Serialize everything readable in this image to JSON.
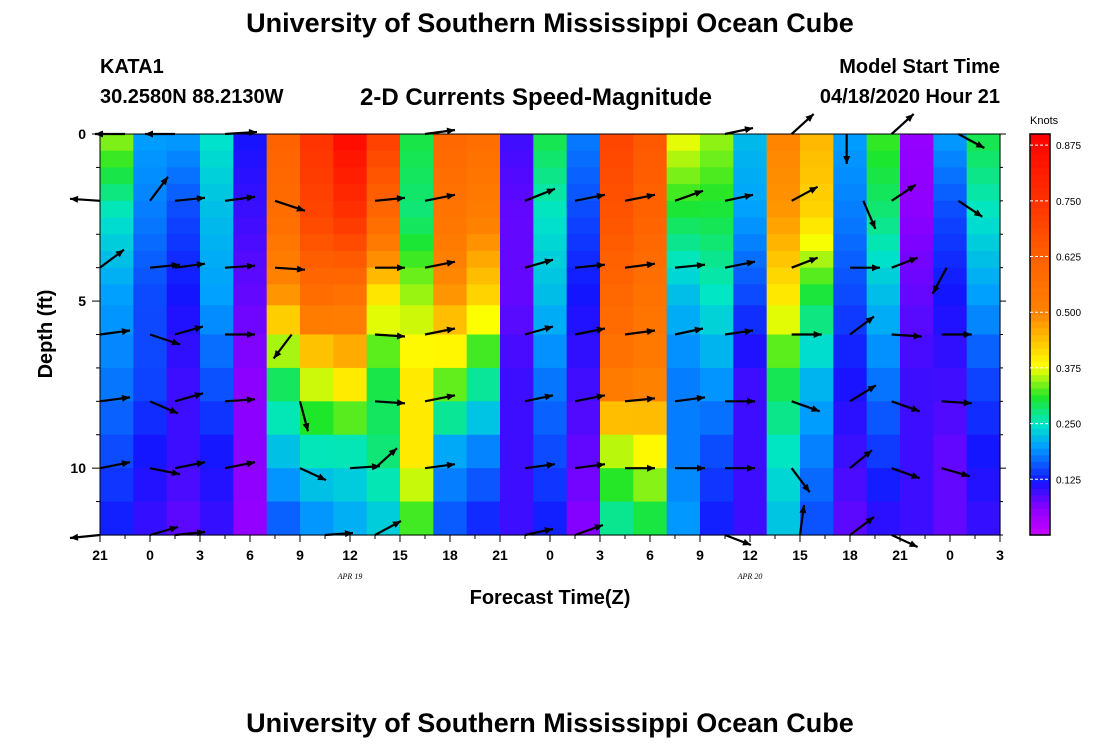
{
  "header": {
    "title": "University of Southern Mississippi Ocean Cube",
    "station": "KATA1",
    "coords": "30.2580N 88.2130W",
    "subtitle": "2-D Currents Speed-Magnitude",
    "model_start_label": "Model Start Time",
    "model_start_value": "04/18/2020 Hour 21"
  },
  "footer": {
    "title": "University of Southern Mississippi Ocean Cube"
  },
  "chart_data": {
    "type": "heatmap",
    "title": "2-D Currents Speed-Magnitude",
    "xlabel": "Forecast Time(Z)",
    "ylabel": "Depth (ft)",
    "x_hours_range": [
      0,
      54
    ],
    "y_depth_range_ft": [
      0,
      12
    ],
    "x_tick_labels": [
      "21",
      "0",
      "3",
      "6",
      "9",
      "12",
      "15",
      "18",
      "21",
      "0",
      "3",
      "6",
      "9",
      "12",
      "15",
      "18",
      "21",
      "0",
      "3"
    ],
    "y_tick_labels": [
      "0",
      "5",
      "10"
    ],
    "y_ticks": [
      0,
      5,
      10
    ],
    "date_labels": [
      {
        "text": "APR  19",
        "hour": 15
      },
      {
        "text": "APR  20",
        "hour": 39
      }
    ],
    "colorbar": {
      "unit": "Knots",
      "range": [
        0.0,
        0.9
      ],
      "ticks": [
        0.125,
        0.25,
        0.375,
        0.5,
        0.625,
        0.75,
        0.875
      ],
      "tick_labels": [
        "0.125",
        "0.250",
        "0.375",
        "0.500",
        "0.625",
        "0.750",
        "0.875"
      ]
    },
    "depth_levels_ft": [
      0.25,
      0.75,
      1.25,
      1.75,
      2.25,
      2.75,
      3.25,
      3.75,
      4.25,
      4.75,
      5.5,
      6.5,
      7.5,
      8.5,
      9.5,
      10.5,
      11.5
    ],
    "column_speeds_knots": [
      [
        0.35,
        0.25,
        0.2,
        0.18,
        0.15,
        0.12
      ],
      [
        0.2,
        0.18,
        0.15,
        0.15,
        0.12,
        0.1
      ],
      [
        0.2,
        0.15,
        0.12,
        0.1,
        0.1,
        0.08
      ],
      [
        0.25,
        0.22,
        0.2,
        0.16,
        0.12,
        0.1
      ],
      [
        0.12,
        0.1,
        0.08,
        0.06,
        0.06,
        0.05
      ],
      [
        0.62,
        0.58,
        0.48,
        0.3,
        0.22,
        0.15
      ],
      [
        0.75,
        0.7,
        0.58,
        0.38,
        0.25,
        0.18
      ],
      [
        0.87,
        0.75,
        0.56,
        0.42,
        0.25,
        0.2
      ],
      [
        0.72,
        0.6,
        0.4,
        0.3,
        0.28,
        0.22
      ],
      [
        0.3,
        0.28,
        0.35,
        0.4,
        0.4,
        0.3
      ],
      [
        0.6,
        0.55,
        0.48,
        0.35,
        0.2,
        0.15
      ],
      [
        0.58,
        0.52,
        0.42,
        0.28,
        0.18,
        0.12
      ],
      [
        0.1,
        0.08,
        0.08,
        0.1,
        0.1,
        0.1
      ],
      [
        0.3,
        0.25,
        0.22,
        0.18,
        0.15,
        0.12
      ],
      [
        0.18,
        0.15,
        0.12,
        0.1,
        0.08,
        0.06
      ],
      [
        0.7,
        0.66,
        0.6,
        0.55,
        0.35,
        0.25
      ],
      [
        0.65,
        0.62,
        0.56,
        0.52,
        0.38,
        0.28
      ],
      [
        0.38,
        0.3,
        0.22,
        0.18,
        0.18,
        0.2
      ],
      [
        0.35,
        0.3,
        0.25,
        0.2,
        0.15,
        0.12
      ],
      [
        0.22,
        0.2,
        0.15,
        0.1,
        0.1,
        0.1
      ],
      [
        0.5,
        0.48,
        0.4,
        0.3,
        0.25,
        0.22
      ],
      [
        0.45,
        0.42,
        0.3,
        0.22,
        0.18,
        0.15
      ],
      [
        0.2,
        0.18,
        0.15,
        0.12,
        0.1,
        0.08
      ],
      [
        0.32,
        0.28,
        0.22,
        0.18,
        0.14,
        0.1
      ],
      [
        0.05,
        0.06,
        0.08,
        0.1,
        0.1,
        0.1
      ],
      [
        0.2,
        0.15,
        0.12,
        0.1,
        0.08,
        0.08
      ],
      [
        0.3,
        0.25,
        0.2,
        0.15,
        0.12,
        0.1
      ]
    ],
    "vectors": [
      {
        "h": 1.5,
        "d": 0,
        "dx": -30,
        "dy": 0
      },
      {
        "h": 4.5,
        "d": 0,
        "dx": -30,
        "dy": 0
      },
      {
        "h": 7.5,
        "d": 0,
        "dx": 32,
        "dy": -2
      },
      {
        "h": 19.5,
        "d": 0,
        "dx": 30,
        "dy": -4
      },
      {
        "h": 37.5,
        "d": 0,
        "dx": 28,
        "dy": -6
      },
      {
        "h": 41.5,
        "d": 0,
        "dx": 22,
        "dy": -20
      },
      {
        "h": 44.8,
        "d": 0,
        "dx": 0,
        "dy": 30
      },
      {
        "h": 47.5,
        "d": 0,
        "dx": 22,
        "dy": -20
      },
      {
        "h": 51.5,
        "d": 0,
        "dx": 26,
        "dy": 14
      },
      {
        "h": 0,
        "d": 2,
        "dx": -30,
        "dy": -2
      },
      {
        "h": 3,
        "d": 2,
        "dx": 18,
        "dy": -24
      },
      {
        "h": 4.5,
        "d": 2,
        "dx": 30,
        "dy": -3
      },
      {
        "h": 7.5,
        "d": 2,
        "dx": 30,
        "dy": -4
      },
      {
        "h": 10.5,
        "d": 2,
        "dx": 30,
        "dy": 10
      },
      {
        "h": 16.5,
        "d": 2,
        "dx": 30,
        "dy": -3
      },
      {
        "h": 19.5,
        "d": 2,
        "dx": 30,
        "dy": -6
      },
      {
        "h": 25.5,
        "d": 2,
        "dx": 30,
        "dy": -12
      },
      {
        "h": 28.5,
        "d": 2,
        "dx": 30,
        "dy": -6
      },
      {
        "h": 31.5,
        "d": 2,
        "dx": 30,
        "dy": -6
      },
      {
        "h": 34.5,
        "d": 2,
        "dx": 28,
        "dy": -10
      },
      {
        "h": 37.5,
        "d": 2,
        "dx": 28,
        "dy": -6
      },
      {
        "h": 41.5,
        "d": 2,
        "dx": 26,
        "dy": -14
      },
      {
        "h": 45.8,
        "d": 2,
        "dx": 12,
        "dy": 28
      },
      {
        "h": 47.5,
        "d": 2,
        "dx": 24,
        "dy": -16
      },
      {
        "h": 51.5,
        "d": 2,
        "dx": 24,
        "dy": 16
      },
      {
        "h": 0,
        "d": 4,
        "dx": 24,
        "dy": -18
      },
      {
        "h": 3,
        "d": 4,
        "dx": 30,
        "dy": -3
      },
      {
        "h": 4.5,
        "d": 4,
        "dx": 30,
        "dy": -4
      },
      {
        "h": 7.5,
        "d": 4,
        "dx": 30,
        "dy": -2
      },
      {
        "h": 10.5,
        "d": 4,
        "dx": 30,
        "dy": 2
      },
      {
        "h": 16.5,
        "d": 4,
        "dx": 30,
        "dy": 0
      },
      {
        "h": 19.5,
        "d": 4,
        "dx": 30,
        "dy": -6
      },
      {
        "h": 25.5,
        "d": 4,
        "dx": 28,
        "dy": -8
      },
      {
        "h": 28.5,
        "d": 4,
        "dx": 30,
        "dy": -3
      },
      {
        "h": 31.5,
        "d": 4,
        "dx": 30,
        "dy": -4
      },
      {
        "h": 34.5,
        "d": 4,
        "dx": 30,
        "dy": -3
      },
      {
        "h": 37.5,
        "d": 4,
        "dx": 30,
        "dy": -6
      },
      {
        "h": 41.5,
        "d": 4,
        "dx": 26,
        "dy": -10
      },
      {
        "h": 45,
        "d": 4,
        "dx": 30,
        "dy": 0
      },
      {
        "h": 47.5,
        "d": 4,
        "dx": 26,
        "dy": -10
      },
      {
        "h": 50.8,
        "d": 4,
        "dx": -14,
        "dy": 26
      },
      {
        "h": 0,
        "d": 6,
        "dx": 30,
        "dy": -4
      },
      {
        "h": 3,
        "d": 6,
        "dx": 30,
        "dy": 10
      },
      {
        "h": 4.5,
        "d": 6,
        "dx": 28,
        "dy": -8
      },
      {
        "h": 7.5,
        "d": 6,
        "dx": 30,
        "dy": 0
      },
      {
        "h": 11.5,
        "d": 6,
        "dx": -18,
        "dy": 24
      },
      {
        "h": 16.5,
        "d": 6,
        "dx": 30,
        "dy": 2
      },
      {
        "h": 19.5,
        "d": 6,
        "dx": 30,
        "dy": -6
      },
      {
        "h": 25.5,
        "d": 6,
        "dx": 28,
        "dy": -8
      },
      {
        "h": 28.5,
        "d": 6,
        "dx": 30,
        "dy": -6
      },
      {
        "h": 31.5,
        "d": 6,
        "dx": 30,
        "dy": -4
      },
      {
        "h": 34.5,
        "d": 6,
        "dx": 28,
        "dy": -6
      },
      {
        "h": 37.5,
        "d": 6,
        "dx": 28,
        "dy": -4
      },
      {
        "h": 41.5,
        "d": 6,
        "dx": 30,
        "dy": 0
      },
      {
        "h": 45,
        "d": 6,
        "dx": 24,
        "dy": -18
      },
      {
        "h": 47.5,
        "d": 6,
        "dx": 30,
        "dy": 2
      },
      {
        "h": 50.5,
        "d": 6,
        "dx": 30,
        "dy": 0
      },
      {
        "h": 0,
        "d": 8,
        "dx": 30,
        "dy": -4
      },
      {
        "h": 3,
        "d": 8,
        "dx": 28,
        "dy": 12
      },
      {
        "h": 4.5,
        "d": 8,
        "dx": 28,
        "dy": -8
      },
      {
        "h": 7.5,
        "d": 8,
        "dx": 30,
        "dy": -2
      },
      {
        "h": 12,
        "d": 8,
        "dx": 8,
        "dy": 30
      },
      {
        "h": 16.5,
        "d": 8,
        "dx": 30,
        "dy": 2
      },
      {
        "h": 19.5,
        "d": 8,
        "dx": 30,
        "dy": -6
      },
      {
        "h": 25.5,
        "d": 8,
        "dx": 28,
        "dy": -6
      },
      {
        "h": 28.5,
        "d": 8,
        "dx": 30,
        "dy": -6
      },
      {
        "h": 31.5,
        "d": 8,
        "dx": 30,
        "dy": -3
      },
      {
        "h": 34.5,
        "d": 8,
        "dx": 30,
        "dy": -4
      },
      {
        "h": 37.5,
        "d": 8,
        "dx": 30,
        "dy": 0
      },
      {
        "h": 41.5,
        "d": 8,
        "dx": 28,
        "dy": 10
      },
      {
        "h": 45,
        "d": 8,
        "dx": 26,
        "dy": -16
      },
      {
        "h": 47.5,
        "d": 8,
        "dx": 28,
        "dy": 10
      },
      {
        "h": 50.5,
        "d": 8,
        "dx": 30,
        "dy": 2
      },
      {
        "h": 0,
        "d": 10,
        "dx": 30,
        "dy": -6
      },
      {
        "h": 3,
        "d": 10,
        "dx": 30,
        "dy": 6
      },
      {
        "h": 4.5,
        "d": 10,
        "dx": 30,
        "dy": -6
      },
      {
        "h": 7.5,
        "d": 10,
        "dx": 30,
        "dy": -6
      },
      {
        "h": 12,
        "d": 10,
        "dx": 26,
        "dy": 12
      },
      {
        "h": 15,
        "d": 10,
        "dx": 30,
        "dy": -2
      },
      {
        "h": 16.5,
        "d": 10,
        "dx": 22,
        "dy": -20
      },
      {
        "h": 19.5,
        "d": 10,
        "dx": 30,
        "dy": -4
      },
      {
        "h": 25.5,
        "d": 10,
        "dx": 30,
        "dy": -4
      },
      {
        "h": 28.5,
        "d": 10,
        "dx": 30,
        "dy": -4
      },
      {
        "h": 31.5,
        "d": 10,
        "dx": 30,
        "dy": 0
      },
      {
        "h": 34.5,
        "d": 10,
        "dx": 30,
        "dy": 0
      },
      {
        "h": 37.5,
        "d": 10,
        "dx": 30,
        "dy": 0
      },
      {
        "h": 41.5,
        "d": 10,
        "dx": 18,
        "dy": 24
      },
      {
        "h": 45,
        "d": 10,
        "dx": 22,
        "dy": -18
      },
      {
        "h": 47.5,
        "d": 10,
        "dx": 28,
        "dy": 10
      },
      {
        "h": 50.5,
        "d": 10,
        "dx": 28,
        "dy": 8
      },
      {
        "h": 0,
        "d": 12,
        "dx": -30,
        "dy": 3
      },
      {
        "h": 3,
        "d": 12,
        "dx": 28,
        "dy": -8
      },
      {
        "h": 4.5,
        "d": 12,
        "dx": 30,
        "dy": -3
      },
      {
        "h": 13.5,
        "d": 12,
        "dx": 28,
        "dy": -2
      },
      {
        "h": 16.5,
        "d": 12,
        "dx": 26,
        "dy": -14
      },
      {
        "h": 25.5,
        "d": 12,
        "dx": 28,
        "dy": -6
      },
      {
        "h": 28.5,
        "d": 12,
        "dx": 28,
        "dy": -10
      },
      {
        "h": 37.5,
        "d": 12,
        "dx": 26,
        "dy": 10
      },
      {
        "h": 42,
        "d": 12,
        "dx": 4,
        "dy": -30
      },
      {
        "h": 45,
        "d": 12,
        "dx": 24,
        "dy": -18
      },
      {
        "h": 47.5,
        "d": 12,
        "dx": 26,
        "dy": 12
      }
    ]
  }
}
